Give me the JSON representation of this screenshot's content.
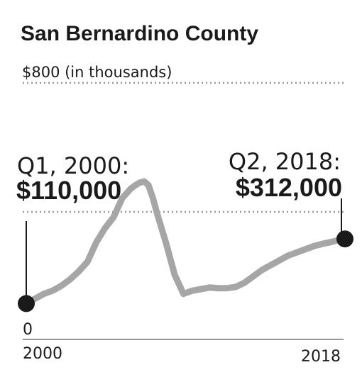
{
  "chart_data": {
    "type": "line",
    "title": "San Bernardino County",
    "y_top_label": "$800 (in thousands)",
    "y_zero_label": "0",
    "ylim": [
      0,
      800
    ],
    "xlim": [
      2000,
      2018.5
    ],
    "x_tick_labels": [
      "2000",
      "2018"
    ],
    "grid": "dotted top line only",
    "series": [
      {
        "x": [
          2000,
          2000.5,
          2001,
          2001.5,
          2002,
          2002.5,
          2003,
          2003.5,
          2004,
          2004.5,
          2005,
          2005.5,
          2006,
          2006.25,
          2006.5,
          2006.75,
          2007,
          2007.25,
          2007.5,
          2008,
          2008.5,
          2009,
          2009.5,
          2010,
          2010.5,
          2011,
          2011.5,
          2012,
          2012.5,
          2013,
          2013.5,
          2014,
          2014.5,
          2015,
          2015.5,
          2016,
          2016.5,
          2017,
          2017.5,
          2018,
          2018.25
        ],
        "y": [
          110,
          125,
          140,
          150,
          165,
          185,
          210,
          240,
          300,
          345,
          380,
          440,
          470,
          480,
          488,
          492,
          480,
          440,
          390,
          300,
          200,
          140,
          150,
          155,
          160,
          158,
          158,
          162,
          175,
          195,
          215,
          230,
          245,
          260,
          270,
          280,
          290,
          297,
          303,
          310,
          312
        ]
      }
    ],
    "annotations": [
      {
        "label": "Q1, 2000:",
        "value": "$110,000",
        "x": 2000,
        "y": 110
      },
      {
        "label": "Q2, 2018:",
        "value": "$312,000",
        "x": 2018.25,
        "y": 312
      }
    ],
    "colors": {
      "line": "#a6a6a6",
      "marker": "#1a1a1a",
      "grid": "#999999",
      "axis": "#999999"
    }
  }
}
